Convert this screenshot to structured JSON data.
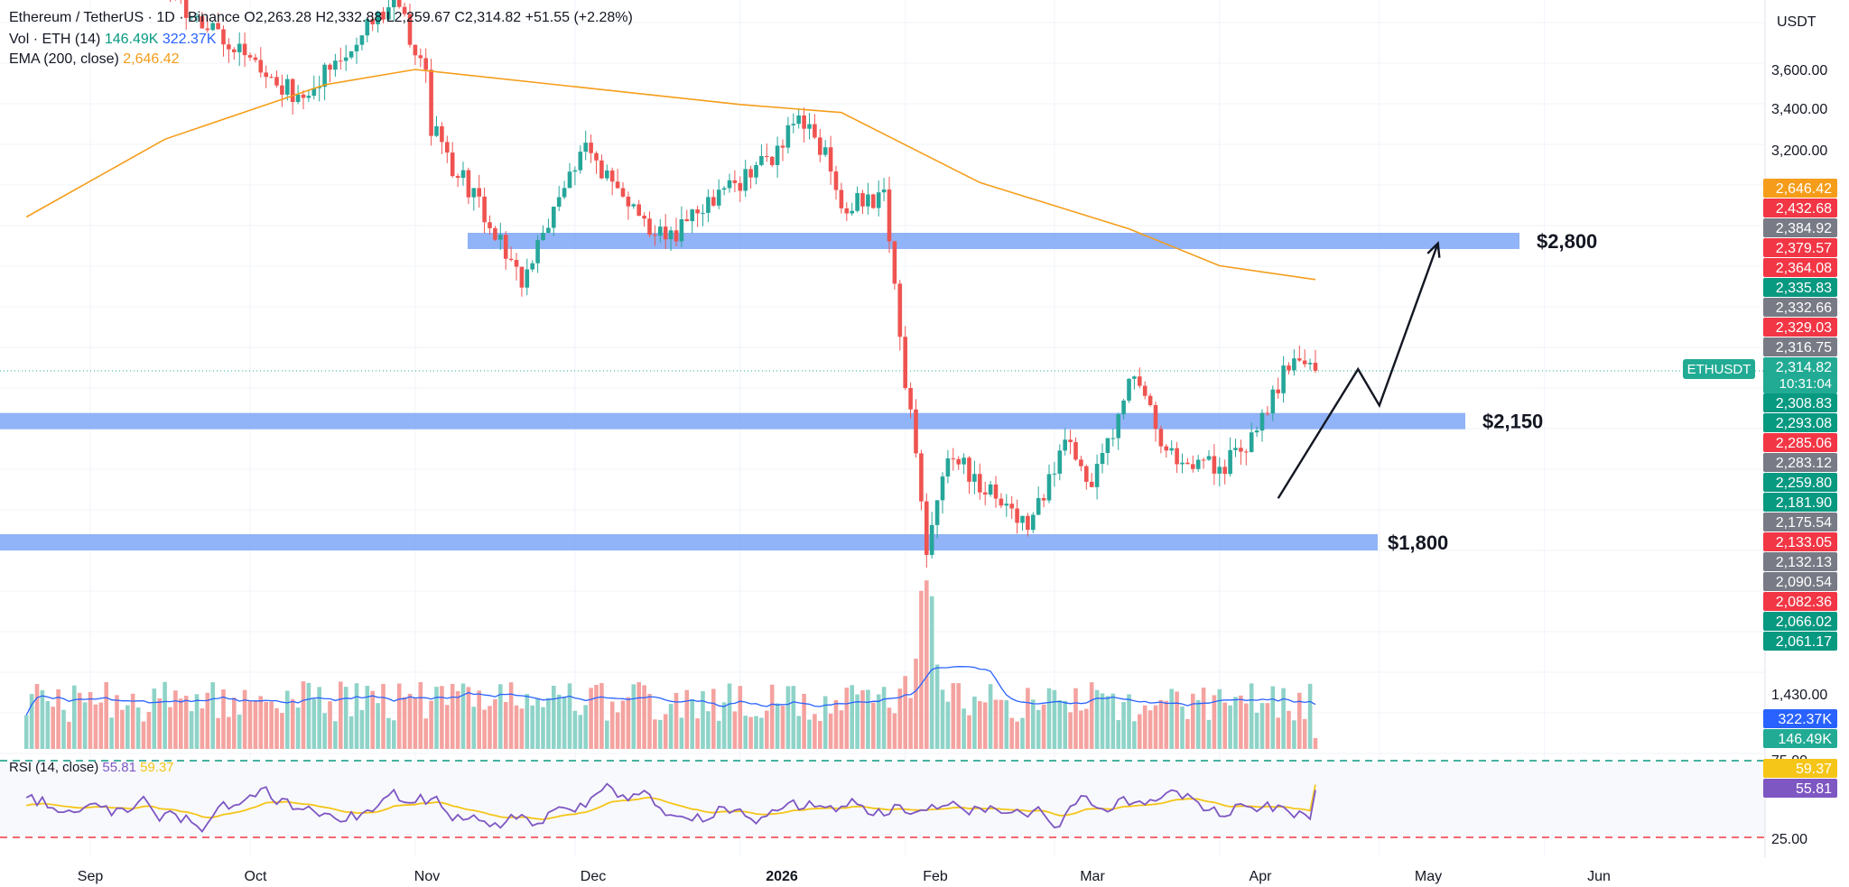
{
  "header": {
    "symbol": "Ethereum / TetherUS · 1D · Binance",
    "ohlc": "O2,263.28  H2,332.88  L2,259.67  C2,314.82  +51.55 (+2.28%)",
    "volume_label": "Vol · ETH (14)",
    "volume_value": "146.49K",
    "volume_ma": "322.37K",
    "ema_label": "EMA (200, close)",
    "ema_value": "2,646.42"
  },
  "rsi": {
    "label": "RSI (14, close)",
    "value": "55.81",
    "ma": "59.37",
    "levels": [
      "75.00",
      "25.00"
    ]
  },
  "axis": {
    "currency": "USDT",
    "price_ticks": [
      "3,600.00",
      "3,400.00",
      "3,200.00"
    ],
    "volume_ticks": [
      "1,430.00"
    ],
    "time_labels": [
      "Sep",
      "Oct",
      "Nov",
      "Dec",
      "2026",
      "Feb",
      "Mar",
      "Apr",
      "May",
      "Jun"
    ],
    "symbol_tag": "ETHUSDT",
    "countdown": "10:31:04"
  },
  "price_badges": [
    {
      "text": "2,646.42",
      "color": "#f59d1a"
    },
    {
      "text": "2,432.68",
      "color": "#f23645"
    },
    {
      "text": "2,384.92",
      "color": "#787b86"
    },
    {
      "text": "2,379.57",
      "color": "#f23645"
    },
    {
      "text": "2,364.08",
      "color": "#f23645"
    },
    {
      "text": "2,335.83",
      "color": "#089981"
    },
    {
      "text": "2,332.66",
      "color": "#787b86"
    },
    {
      "text": "2,329.03",
      "color": "#f23645"
    },
    {
      "text": "2,316.75",
      "color": "#787b86"
    },
    {
      "text": "2,314.82",
      "color": "#22ab94"
    },
    {
      "text": "2,308.83",
      "color": "#089981"
    },
    {
      "text": "2,293.08",
      "color": "#089981"
    },
    {
      "text": "2,285.06",
      "color": "#f23645"
    },
    {
      "text": "2,283.12",
      "color": "#787b86"
    },
    {
      "text": "2,259.80",
      "color": "#089981"
    },
    {
      "text": "2,181.90",
      "color": "#089981"
    },
    {
      "text": "2,175.54",
      "color": "#787b86"
    },
    {
      "text": "2,133.05",
      "color": "#f23645"
    },
    {
      "text": "2,132.13",
      "color": "#787b86"
    },
    {
      "text": "2,090.54",
      "color": "#787b86"
    },
    {
      "text": "2,082.36",
      "color": "#f23645"
    },
    {
      "text": "2,066.02",
      "color": "#089981"
    },
    {
      "text": "2,061.17",
      "color": "#089981"
    }
  ],
  "volume_badges": [
    {
      "text": "322.37K",
      "color": "#2962ff"
    },
    {
      "text": "146.49K",
      "color": "#22ab94"
    }
  ],
  "rsi_badges": [
    {
      "text": "59.37",
      "color": "#f5c518"
    },
    {
      "text": "55.81",
      "color": "#7e57c2"
    }
  ],
  "annotations": {
    "zones": [
      {
        "label": "$2,800",
        "price": 2800
      },
      {
        "label": "$2,150",
        "price": 2150
      },
      {
        "label": "$1,800",
        "price": 1800
      }
    ]
  },
  "colors": {
    "up": "#26a69a",
    "down": "#ef5350",
    "vol_up": "#8fd3c8",
    "vol_down": "#f4a3a0",
    "ema": "#f59d1a",
    "zone": "#7ea6f6",
    "vol_ma": "#2962ff",
    "rsi": "#7e57c2",
    "rsi_ma": "#f5c518"
  },
  "chart_data": {
    "type": "candlestick",
    "interval": "1D",
    "x_range": [
      "2025-08-20",
      "2026-06-15"
    ],
    "y_range_price": [
      1700,
      3800
    ],
    "scale": "log",
    "anchors": [
      {
        "date": "2025-08-25",
        "price": 4600
      },
      {
        "date": "2025-10-11",
        "price": 3440
      },
      {
        "date": "2025-10-28",
        "price": 4000
      },
      {
        "date": "2025-11-03",
        "price": 3600
      },
      {
        "date": "2025-11-04",
        "price": 3300
      },
      {
        "date": "2025-11-21",
        "price": 2650
      },
      {
        "date": "2025-12-03",
        "price": 3200
      },
      {
        "date": "2025-12-18",
        "price": 2800
      },
      {
        "date": "2026-01-06",
        "price": 3150
      },
      {
        "date": "2026-01-14",
        "price": 3380
      },
      {
        "date": "2026-01-20",
        "price": 2950
      },
      {
        "date": "2026-01-28",
        "price": 3000
      },
      {
        "date": "2026-01-31",
        "price": 2400
      },
      {
        "date": "2026-02-02",
        "price": 2150
      },
      {
        "date": "2026-02-05",
        "price": 1780
      },
      {
        "date": "2026-02-09",
        "price": 2050
      },
      {
        "date": "2026-02-24",
        "price": 1850
      },
      {
        "date": "2026-03-04",
        "price": 2100
      },
      {
        "date": "2026-03-08",
        "price": 1950
      },
      {
        "date": "2026-03-16",
        "price": 2300
      },
      {
        "date": "2026-03-22",
        "price": 2050
      },
      {
        "date": "2026-04-01",
        "price": 2000
      },
      {
        "date": "2026-04-07",
        "price": 2100
      },
      {
        "date": "2026-04-10",
        "price": 2200
      },
      {
        "date": "2026-04-15",
        "price": 2380
      },
      {
        "date": "2026-04-19",
        "price": 2315
      }
    ],
    "ema200": [
      {
        "date": "2025-08-20",
        "value": 2900
      },
      {
        "date": "2025-09-15",
        "value": 3250
      },
      {
        "date": "2025-10-15",
        "value": 3520
      },
      {
        "date": "2025-11-01",
        "value": 3600
      },
      {
        "date": "2025-12-01",
        "value": 3510
      },
      {
        "date": "2026-01-01",
        "value": 3420
      },
      {
        "date": "2026-01-20",
        "value": 3380
      },
      {
        "date": "2026-02-15",
        "value": 3050
      },
      {
        "date": "2026-03-15",
        "value": 2850
      },
      {
        "date": "2026-04-01",
        "value": 2700
      },
      {
        "date": "2026-04-19",
        "value": 2646
      }
    ],
    "projection": [
      {
        "date": "2026-04-12",
        "price": 1920
      },
      {
        "date": "2026-04-27",
        "price": 2320
      },
      {
        "date": "2026-05-01",
        "price": 2200
      },
      {
        "date": "2026-05-12",
        "price": 2790
      }
    ],
    "rsi_range": [
      25,
      75
    ]
  }
}
